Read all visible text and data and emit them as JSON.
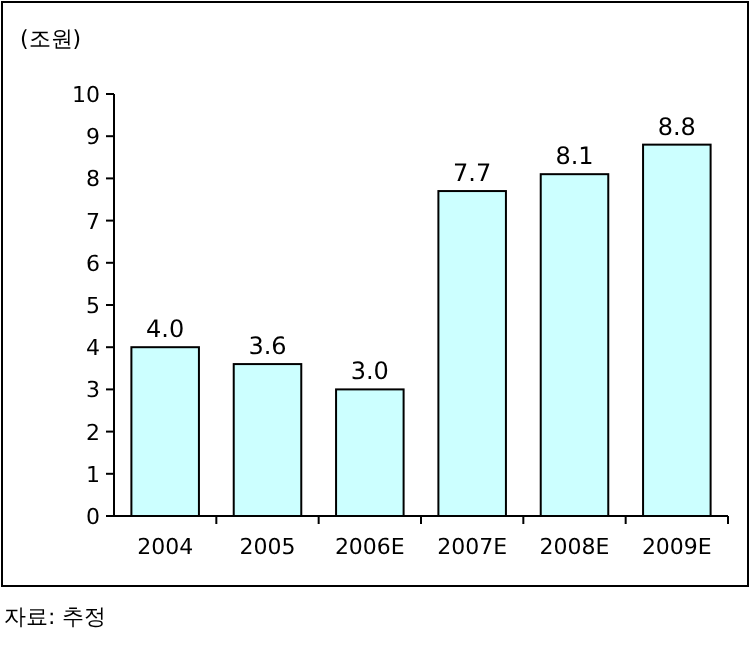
{
  "chart_data": {
    "type": "bar",
    "ylabel": "(조원)",
    "categories": [
      "2004",
      "2005",
      "2006E",
      "2007E",
      "2008E",
      "2009E"
    ],
    "values": [
      4.0,
      3.6,
      3.0,
      7.7,
      8.1,
      8.8
    ],
    "value_labels": [
      "4.0",
      "3.6",
      "3.0",
      "7.7",
      "8.1",
      "8.8"
    ],
    "color": "#ccffff",
    "ylim": [
      0,
      10
    ],
    "yticks": [
      0,
      1,
      2,
      3,
      4,
      5,
      6,
      7,
      8,
      9,
      10
    ],
    "grid": false,
    "annotations": [
      "자료: 추정"
    ]
  }
}
